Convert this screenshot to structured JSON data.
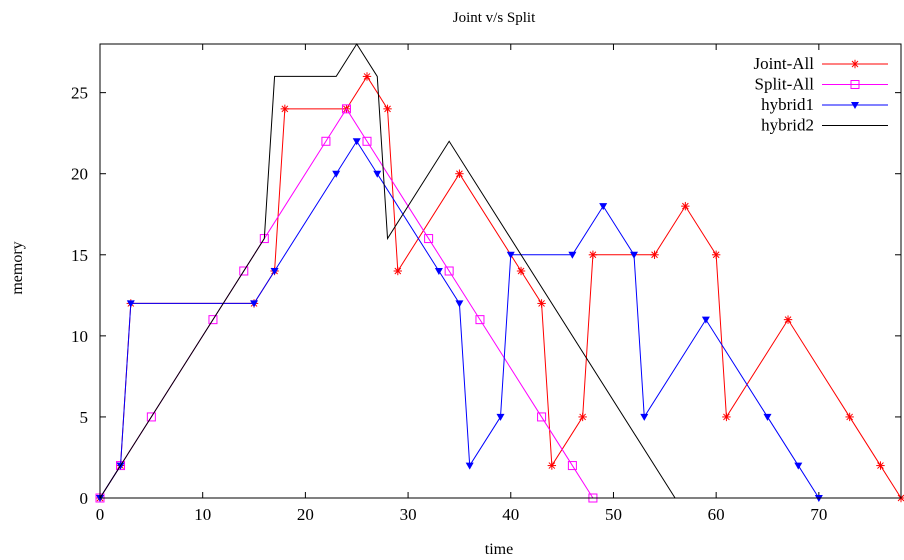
{
  "chart_data": {
    "type": "line",
    "title": "Joint v/s Split",
    "xlabel": "time",
    "ylabel": "memory",
    "xlim": [
      0,
      78
    ],
    "ylim": [
      0,
      28
    ],
    "xticks": [
      0,
      10,
      20,
      30,
      40,
      50,
      60,
      70
    ],
    "yticks": [
      0,
      5,
      10,
      15,
      20,
      25
    ],
    "grid": false,
    "legend_position": "top-right",
    "series": [
      {
        "name": "Joint-All",
        "color": "#ff0000",
        "marker": "asterisk",
        "x": [
          0,
          2,
          3,
          15,
          17,
          18,
          24,
          26,
          28,
          29,
          35,
          41,
          43,
          44,
          47,
          48,
          54,
          57,
          60,
          61,
          67,
          73,
          76,
          78
        ],
        "y": [
          0,
          2,
          12,
          12,
          14,
          24,
          24,
          26,
          24,
          14,
          20,
          14,
          12,
          2,
          5,
          15,
          15,
          18,
          15,
          5,
          11,
          5,
          2,
          0
        ]
      },
      {
        "name": "Split-All",
        "color": "#ff00ff",
        "marker": "open-square",
        "x": [
          0,
          2,
          5,
          11,
          14,
          16,
          22,
          24,
          26,
          32,
          34,
          37,
          43,
          46,
          48
        ],
        "y": [
          0,
          2,
          5,
          11,
          14,
          16,
          22,
          24,
          22,
          16,
          14,
          11,
          5,
          2,
          0
        ]
      },
      {
        "name": "hybrid1",
        "color": "#0000ff",
        "marker": "down-triangle",
        "x": [
          0,
          2,
          3,
          15,
          17,
          23,
          25,
          27,
          33,
          35,
          36,
          39,
          40,
          46,
          49,
          52,
          53,
          59,
          65,
          68,
          70
        ],
        "y": [
          0,
          2,
          12,
          12,
          14,
          20,
          22,
          20,
          14,
          12,
          2,
          5,
          15,
          15,
          18,
          15,
          5,
          11,
          5,
          2,
          0
        ]
      },
      {
        "name": "hybrid2",
        "color": "#000000",
        "marker": "none",
        "x": [
          0,
          16,
          17,
          23,
          25,
          27,
          28,
          34,
          56
        ],
        "y": [
          0,
          16,
          26,
          26,
          28,
          26,
          16,
          22,
          0
        ]
      }
    ]
  }
}
